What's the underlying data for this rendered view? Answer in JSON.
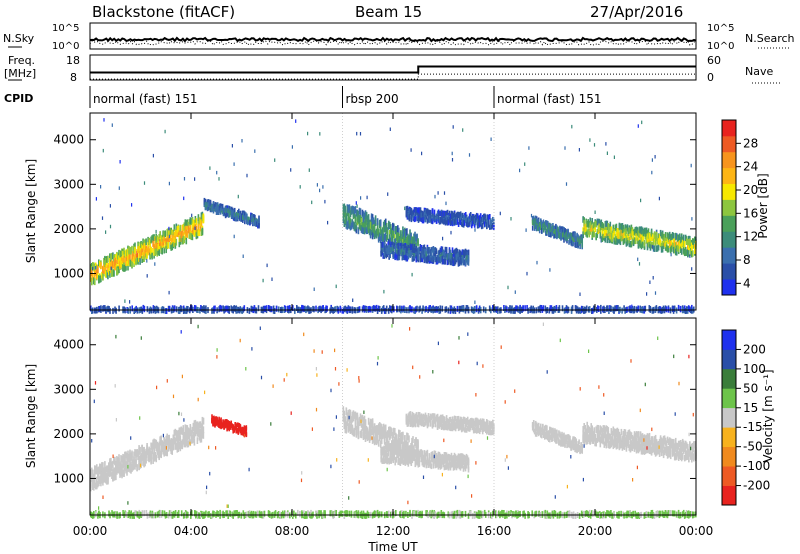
{
  "header": {
    "site": "Blackstone (fitACF)",
    "beam": "Beam 15",
    "date": "27/Apr/2016"
  },
  "top_panels": {
    "nsky_label": "N.Sky",
    "nsearch_label": "N.Search",
    "freq_label_1": "Freq.",
    "freq_label_2": "[MHz]",
    "nave_label": "Nave",
    "cpid_label": "CPID",
    "nsky_ticks": [
      "10^5",
      "10^0"
    ],
    "nsearch_ticks": [
      "10^5",
      "10^0"
    ],
    "freq_ticks": [
      "18",
      "8"
    ],
    "nave_ticks": [
      "60",
      "0"
    ],
    "freq_series": {
      "x": [
        0,
        13.0,
        13.0,
        24
      ],
      "y": [
        11.0,
        11.0,
        13.4,
        13.4
      ]
    },
    "nave_series": {
      "x": [
        0,
        13.0,
        13.0,
        24
      ],
      "y": [
        2,
        2,
        14,
        14
      ]
    }
  },
  "cpid": [
    {
      "label": "normal (fast) 151",
      "start_hr": 0,
      "end_hr": 10
    },
    {
      "label": "rbsp 200",
      "start_hr": 10,
      "end_hr": 16
    },
    {
      "label": "normal (fast) 151",
      "start_hr": 16,
      "end_hr": 24
    }
  ],
  "chart_data": [
    {
      "type": "heatmap",
      "parameter": "power",
      "ylabel": "Slant Range [km]",
      "xlim": [
        0,
        24
      ],
      "ylim": [
        180,
        4600
      ],
      "yticks": [
        1000,
        2000,
        3000,
        4000
      ],
      "colorbar_label": "Power [dB]",
      "colorbar_ticks": [
        4,
        8,
        12,
        16,
        20,
        24,
        28
      ],
      "colorbar_range": [
        2,
        32
      ],
      "colors": [
        "#1f31ee",
        "#2a4fa8",
        "#3a6fae",
        "#3c8c7a",
        "#4aa05a",
        "#8dc63f",
        "#f7e800",
        "#fdb515",
        "#f7941d",
        "#ee5a24",
        "#e8231f"
      ],
      "echo_regions": [
        {
          "name": "A",
          "start_hr": 0.0,
          "end_hr": 4.5,
          "range_start_km": 1050,
          "range_end_km": 2200,
          "width_km": 420,
          "power_db": 22
        },
        {
          "name": "B",
          "start_hr": 4.5,
          "end_hr": 6.7,
          "range_start_km": 2600,
          "range_end_km": 2200,
          "width_km": 200,
          "power_db": 8
        },
        {
          "name": "C",
          "start_hr": 10.0,
          "end_hr": 13.0,
          "range_start_km": 2400,
          "range_end_km": 1700,
          "width_km": 450,
          "power_db": 12
        },
        {
          "name": "D",
          "start_hr": 11.5,
          "end_hr": 15.0,
          "range_start_km": 1600,
          "range_end_km": 1400,
          "width_km": 300,
          "power_db": 7
        },
        {
          "name": "E",
          "start_hr": 12.5,
          "end_hr": 16.0,
          "range_start_km": 2400,
          "range_end_km": 2200,
          "width_km": 250,
          "power_db": 6
        },
        {
          "name": "F",
          "start_hr": 17.5,
          "end_hr": 19.5,
          "range_start_km": 2200,
          "range_end_km": 1750,
          "width_km": 250,
          "power_db": 10
        },
        {
          "name": "G",
          "start_hr": 19.5,
          "end_hr": 24.0,
          "range_start_km": 2100,
          "range_end_km": 1650,
          "width_km": 380,
          "power_db": 18
        },
        {
          "name": "ground",
          "start_hr": 0.0,
          "end_hr": 24.0,
          "range_start_km": 240,
          "range_end_km": 240,
          "width_km": 110,
          "power_db": 5
        }
      ]
    },
    {
      "type": "heatmap",
      "parameter": "velocity",
      "ylabel": "Slant Range [km]",
      "xlabel": "Time UT",
      "xlim": [
        0,
        24
      ],
      "ylim": [
        180,
        4600
      ],
      "yticks": [
        1000,
        2000,
        3000,
        4000
      ],
      "xticks": [
        "00:00",
        "04:00",
        "08:00",
        "12:00",
        "16:00",
        "20:00",
        "00:00"
      ],
      "colorbar_label": "Velocity [m s⁻¹]",
      "colorbar_ticks": [
        "200",
        "100",
        "50",
        "15",
        "-15",
        "-50",
        "-100",
        "-200"
      ],
      "colors": [
        "#1f31ee",
        "#2a4fa8",
        "#3a7d3a",
        "#6dc44a",
        "#c8c8c8",
        "#f7b21e",
        "#f08a1e",
        "#ee5a24",
        "#e8231f"
      ],
      "echo_regions": [
        {
          "name": "A",
          "start_hr": 0.0,
          "end_hr": 4.5,
          "range_start_km": 1050,
          "range_end_km": 2200,
          "width_km": 420,
          "velocity": 0
        },
        {
          "name": "B",
          "start_hr": 4.8,
          "end_hr": 6.2,
          "range_start_km": 2350,
          "range_end_km": 2100,
          "width_km": 180,
          "velocity": -250
        },
        {
          "name": "C",
          "start_hr": 10.0,
          "end_hr": 13.0,
          "range_start_km": 2400,
          "range_end_km": 1700,
          "width_km": 450,
          "velocity": 0
        },
        {
          "name": "D",
          "start_hr": 11.5,
          "end_hr": 15.0,
          "range_start_km": 1600,
          "range_end_km": 1400,
          "width_km": 300,
          "velocity": 0
        },
        {
          "name": "E",
          "start_hr": 12.5,
          "end_hr": 16.0,
          "range_start_km": 2400,
          "range_end_km": 2200,
          "width_km": 250,
          "velocity": 0
        },
        {
          "name": "F",
          "start_hr": 17.5,
          "end_hr": 19.5,
          "range_start_km": 2200,
          "range_end_km": 1750,
          "width_km": 250,
          "velocity": 0
        },
        {
          "name": "G",
          "start_hr": 19.5,
          "end_hr": 24.0,
          "range_start_km": 2100,
          "range_end_km": 1650,
          "width_km": 380,
          "velocity": 0
        },
        {
          "name": "ground",
          "start_hr": 0.0,
          "end_hr": 24.0,
          "range_start_km": 240,
          "range_end_km": 240,
          "width_km": 110,
          "velocity": 20
        }
      ]
    }
  ]
}
